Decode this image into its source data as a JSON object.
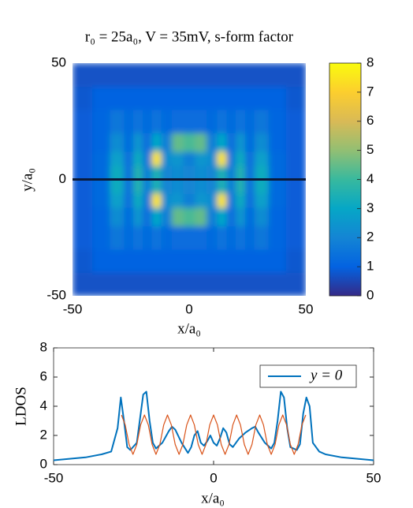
{
  "chart_data": [
    {
      "type": "heatmap",
      "title": "r₀ = 25a₀, V = 35mV, s-form factor",
      "xlabel": "x/a₀",
      "ylabel": "y/a₀",
      "xlim": [
        -50,
        50
      ],
      "ylim": [
        -50,
        50
      ],
      "xticks": [
        -50,
        0,
        50
      ],
      "yticks": [
        -50,
        0,
        50
      ],
      "clim": [
        0,
        8
      ],
      "cticks": [
        0,
        1,
        2,
        3,
        4,
        5,
        6,
        7,
        8
      ],
      "colormap": [
        "#352a87",
        "#0363e1",
        "#1485d4",
        "#06a7c6",
        "#38b99e",
        "#92bf73",
        "#d9ba56",
        "#fcce2e",
        "#f9fb0e"
      ],
      "x": [
        -45,
        -38,
        -30,
        -26,
        -22,
        -18,
        -14,
        -10,
        -5,
        0,
        5,
        10,
        14,
        18,
        22,
        26,
        30,
        38,
        45
      ],
      "y": [
        -45,
        -35,
        -25,
        -15,
        -9,
        -3,
        3,
        9,
        15,
        25,
        35,
        45
      ],
      "z": [
        [
          0.7,
          0.7,
          0.7,
          0.7,
          0.7,
          0.7,
          0.7,
          0.7,
          0.7,
          0.7,
          0.7,
          0.7,
          0.7,
          0.7,
          0.7,
          0.7,
          0.7,
          0.7,
          0.7
        ],
        [
          0.8,
          1,
          1,
          1,
          1,
          1,
          1,
          1,
          1,
          1,
          1,
          1,
          1,
          1,
          1,
          1,
          1,
          1,
          0.8
        ],
        [
          0.9,
          1.1,
          1.6,
          1.2,
          1.5,
          1.2,
          1.5,
          1.2,
          1.3,
          1.3,
          1.3,
          1.2,
          1.5,
          1.2,
          1.5,
          1.2,
          1.6,
          1.1,
          0.9
        ],
        [
          0.9,
          1.1,
          2.2,
          1.2,
          2.5,
          1.3,
          3,
          1.8,
          4.5,
          4.2,
          4.5,
          1.8,
          3,
          1.3,
          2.5,
          1.2,
          2.2,
          1.1,
          0.9
        ],
        [
          0.9,
          1.2,
          2.8,
          1.3,
          3.2,
          1.6,
          7.5,
          2.2,
          2.5,
          1.8,
          2.5,
          2.2,
          7.5,
          1.6,
          3.2,
          1.3,
          2.8,
          1.2,
          0.9
        ],
        [
          0.9,
          1.2,
          3.2,
          1.4,
          3.6,
          1.8,
          3.5,
          2,
          2.2,
          2,
          2.2,
          2,
          3.5,
          1.8,
          3.6,
          1.4,
          3.2,
          1.2,
          0.9
        ],
        [
          0.9,
          1.2,
          3.2,
          1.4,
          3.6,
          1.8,
          3.5,
          2,
          2.2,
          2,
          2.2,
          2,
          3.5,
          1.8,
          3.6,
          1.4,
          3.2,
          1.2,
          0.9
        ],
        [
          0.9,
          1.2,
          2.8,
          1.3,
          3.2,
          1.6,
          7.5,
          2.2,
          2.5,
          1.8,
          2.5,
          2.2,
          7.5,
          1.6,
          3.2,
          1.3,
          2.8,
          1.2,
          0.9
        ],
        [
          0.9,
          1.1,
          2.2,
          1.2,
          2.5,
          1.3,
          3,
          1.8,
          4.5,
          4.2,
          4.5,
          1.8,
          3,
          1.3,
          2.5,
          1.2,
          2.2,
          1.1,
          0.9
        ],
        [
          0.9,
          1.1,
          1.6,
          1.2,
          1.5,
          1.2,
          1.5,
          1.2,
          1.3,
          1.3,
          1.3,
          1.2,
          1.5,
          1.2,
          1.5,
          1.2,
          1.6,
          1.1,
          0.9
        ],
        [
          0.8,
          1,
          1,
          1,
          1,
          1,
          1,
          1,
          1,
          1,
          1,
          1,
          1,
          1,
          1,
          1,
          1,
          1,
          0.8
        ],
        [
          0.7,
          0.7,
          0.7,
          0.7,
          0.7,
          0.7,
          0.7,
          0.7,
          0.7,
          0.7,
          0.7,
          0.7,
          0.7,
          0.7,
          0.7,
          0.7,
          0.7,
          0.7,
          0.7
        ]
      ]
    },
    {
      "type": "line",
      "xlabel": "x/a₀",
      "ylabel": "LDOS",
      "xlim": [
        -50,
        50
      ],
      "ylim": [
        0,
        8
      ],
      "xticks": [
        -50,
        0,
        50
      ],
      "yticks": [
        0,
        2,
        4,
        6,
        8
      ],
      "legend": "upper right",
      "series": [
        {
          "name": "y = 0",
          "color": "#0072bd",
          "x": [
            -50,
            -45,
            -40,
            -35,
            -32,
            -30,
            -29,
            -28,
            -27,
            -26,
            -24,
            -22,
            -21,
            -20,
            -19,
            -18,
            -16,
            -14,
            -13,
            -12,
            -10,
            -8,
            -7,
            -6,
            -5,
            -4,
            -3,
            -2,
            -1,
            0,
            1,
            2,
            3,
            4,
            5,
            6,
            8,
            10,
            12,
            13,
            14,
            16,
            18,
            19,
            20,
            21,
            22,
            23,
            24,
            26,
            27,
            28,
            29,
            30,
            31,
            33,
            35,
            40,
            45,
            50
          ],
          "values": [
            0.3,
            0.4,
            0.5,
            0.7,
            0.9,
            2.5,
            4.6,
            3,
            1.2,
            1,
            1.5,
            4.8,
            5,
            3,
            1.5,
            1.1,
            1.5,
            2.3,
            2.6,
            2.4,
            1.5,
            0.8,
            1.2,
            2,
            2.3,
            1.5,
            1.3,
            1.6,
            2,
            1.5,
            1.3,
            1.8,
            2.5,
            2.2,
            1.4,
            1.2,
            1.8,
            2.2,
            2.5,
            2.6,
            2.2,
            1.5,
            1.1,
            1.5,
            3,
            5,
            4.6,
            2.5,
            1.2,
            1,
            1.4,
            3.5,
            4.6,
            4,
            1.5,
            0.9,
            0.7,
            0.5,
            0.4,
            0.3
          ]
        },
        {
          "color": "#d95319",
          "x": [
            -28.8,
            -27.6,
            -26.4,
            -25.2,
            -24,
            -22.8,
            -21.6,
            -20.4,
            -19.2,
            -18,
            -16.8,
            -15.6,
            -14.4,
            -13.2,
            -12,
            -10.8,
            -9.6,
            -8.4,
            -7.2,
            -6,
            -4.8,
            -3.6,
            -2.4,
            -1.2,
            0,
            1.2,
            2.4,
            3.6,
            4.8,
            6,
            7.2,
            8.4,
            9.6,
            10.8,
            12,
            13.2,
            14.4,
            15.6,
            16.8,
            18,
            19.2,
            20.4,
            21.6,
            22.8,
            24,
            25.2,
            26.4,
            27.6,
            28.8
          ],
          "values": [
            3.4,
            2.72,
            1.38,
            0.7,
            1.38,
            2.72,
            3.4,
            2.72,
            1.38,
            0.7,
            1.38,
            2.72,
            3.4,
            2.72,
            1.38,
            0.7,
            1.38,
            2.72,
            3.4,
            2.72,
            1.38,
            0.7,
            1.38,
            2.72,
            3.4,
            2.72,
            1.38,
            0.7,
            1.38,
            2.72,
            3.4,
            2.72,
            1.38,
            0.7,
            1.38,
            2.72,
            3.4,
            2.72,
            1.38,
            0.7,
            1.38,
            2.72,
            3.4,
            2.72,
            1.38,
            0.7,
            1.38,
            2.72,
            3.4
          ]
        }
      ]
    }
  ]
}
